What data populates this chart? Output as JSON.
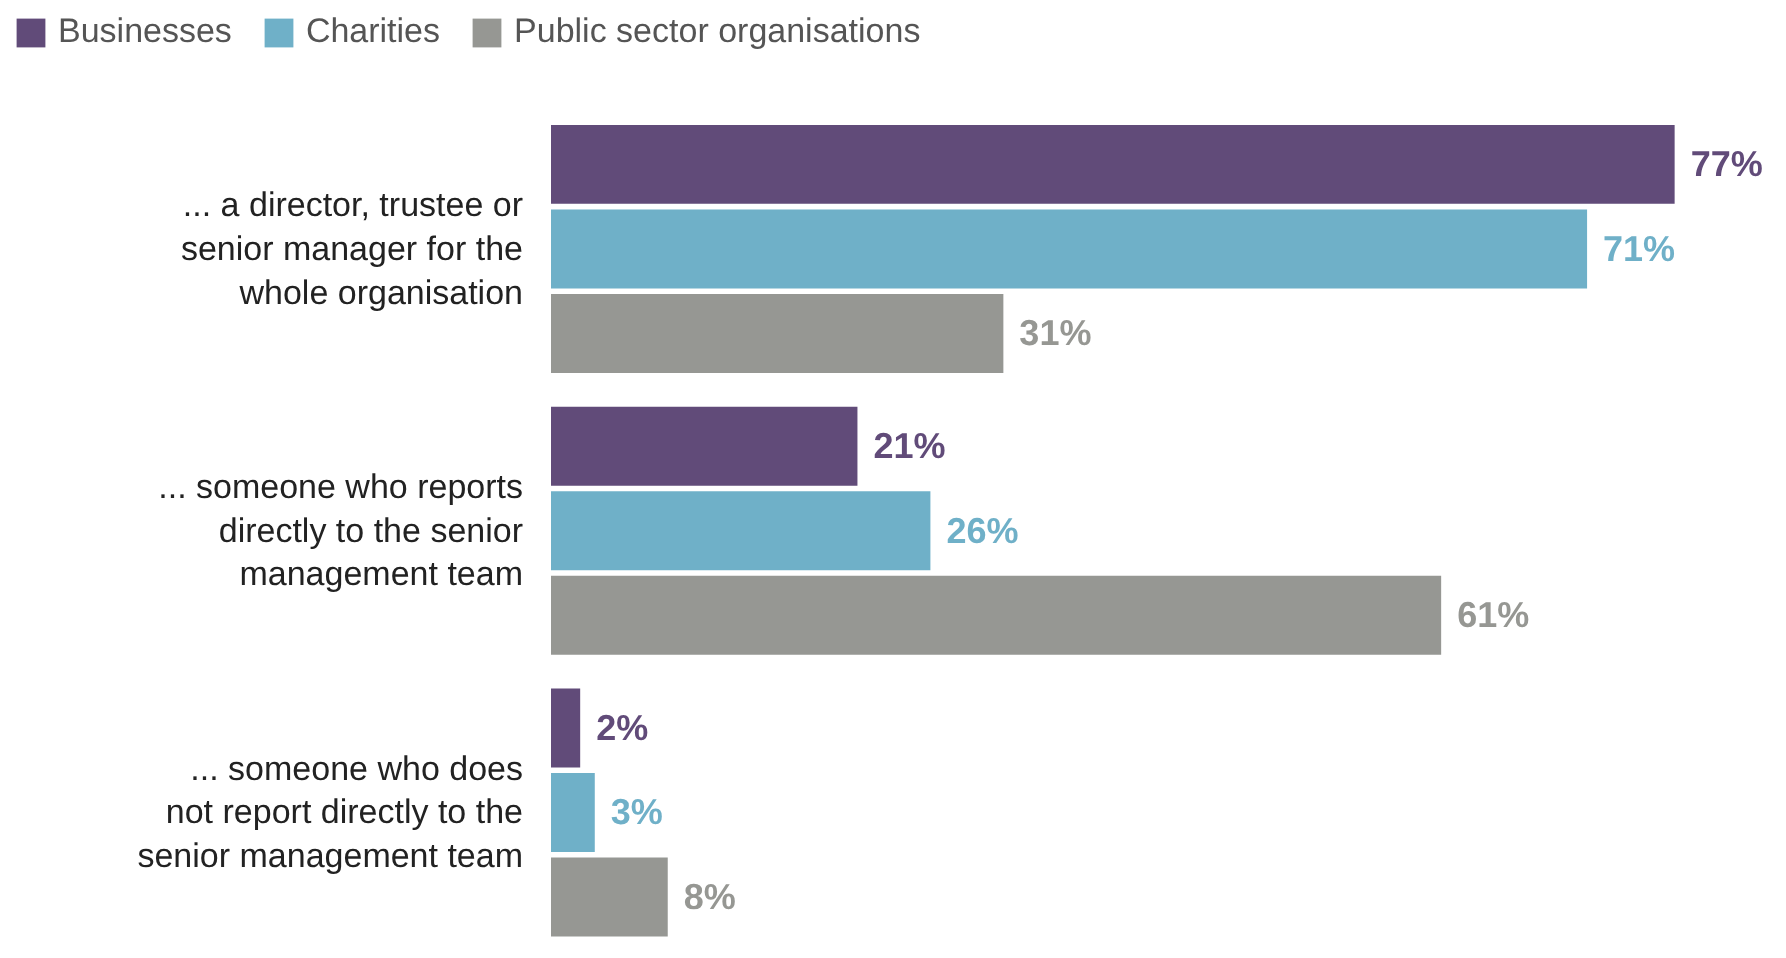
{
  "chart_data": {
    "type": "bar",
    "orientation": "horizontal",
    "legend": "top left",
    "categories": [
      "... a director, trustee or\nsenior manager for the\nwhole organisation",
      "... someone who reports\ndirectly to the senior\nmanagement team",
      "... someone who does\nnot report directly to the\nsenior management team"
    ],
    "series": [
      {
        "name": "Businesses",
        "color": "#614b79",
        "values": [
          77,
          21,
          2
        ],
        "value_labels": [
          "77%",
          "21%",
          "2%"
        ]
      },
      {
        "name": "Charities",
        "color": "#6fb0c8",
        "values": [
          71,
          26,
          3
        ],
        "value_labels": [
          "71%",
          "26%",
          "3%"
        ]
      },
      {
        "name": "Public sector organisations",
        "color": "#969793",
        "values": [
          31,
          61,
          8
        ],
        "value_labels": [
          "31%",
          "61%",
          "8%"
        ]
      }
    ]
  }
}
